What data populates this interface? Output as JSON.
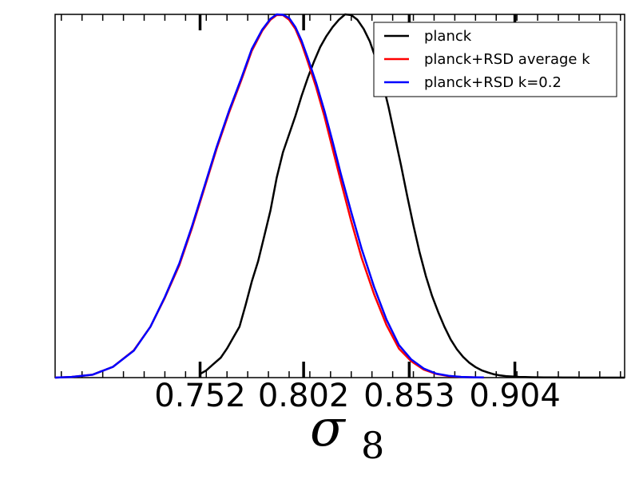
{
  "chart_data": {
    "type": "line",
    "xlabel": "σ",
    "xlabel_subscript": "8",
    "ylabel": "",
    "xlim": [
      0.682,
      0.957
    ],
    "ylim": [
      0,
      1.0
    ],
    "xticks": [
      0.752,
      0.802,
      0.853,
      0.904
    ],
    "xtick_labels": [
      "0.752",
      "0.802",
      "0.853",
      "0.904"
    ],
    "legend_position": "top-right",
    "series": [
      {
        "name": "planck",
        "color": "#000000",
        "x": [
          0.752,
          0.755,
          0.758,
          0.762,
          0.765,
          0.768,
          0.771,
          0.774,
          0.777,
          0.78,
          0.783,
          0.786,
          0.789,
          0.792,
          0.795,
          0.798,
          0.801,
          0.804,
          0.807,
          0.81,
          0.813,
          0.816,
          0.819,
          0.822,
          0.825,
          0.828,
          0.831,
          0.834,
          0.837,
          0.84,
          0.843,
          0.846,
          0.849,
          0.852,
          0.855,
          0.858,
          0.861,
          0.864,
          0.867,
          0.87,
          0.873,
          0.876,
          0.879,
          0.882,
          0.885,
          0.888,
          0.891,
          0.894,
          0.897,
          0.9,
          0.903,
          0.906,
          0.909,
          0.912,
          0.915,
          0.918,
          0.921,
          0.924,
          0.927,
          0.93,
          0.933,
          0.936,
          0.939,
          0.942,
          0.945,
          0.948,
          0.951,
          0.954,
          0.957
        ],
        "y": [
          0.01,
          0.02,
          0.035,
          0.055,
          0.08,
          0.11,
          0.14,
          0.2,
          0.265,
          0.32,
          0.39,
          0.46,
          0.55,
          0.62,
          0.67,
          0.72,
          0.775,
          0.825,
          0.87,
          0.91,
          0.94,
          0.965,
          0.985,
          1.0,
          0.998,
          0.985,
          0.96,
          0.925,
          0.875,
          0.815,
          0.745,
          0.665,
          0.585,
          0.5,
          0.42,
          0.345,
          0.28,
          0.225,
          0.18,
          0.14,
          0.105,
          0.078,
          0.057,
          0.041,
          0.029,
          0.02,
          0.014,
          0.009,
          0.006,
          0.004,
          0.003,
          0.002,
          0.0015,
          0.001,
          0.0008,
          0.0006,
          0.0005,
          0.0004,
          0.0003,
          0.0002,
          0.0002,
          0.0001,
          0.0001,
          0.0001,
          0.0001,
          0.0,
          0.0,
          0.0,
          0.0
        ]
      },
      {
        "name": "planck+RSD average k",
        "color": "#ff0000",
        "x": [
          0.682,
          0.69,
          0.7,
          0.71,
          0.72,
          0.728,
          0.735,
          0.742,
          0.748,
          0.754,
          0.76,
          0.766,
          0.772,
          0.777,
          0.782,
          0.786,
          0.789,
          0.792,
          0.795,
          0.798,
          0.801,
          0.804,
          0.808,
          0.812,
          0.816,
          0.82,
          0.825,
          0.83,
          0.836,
          0.842,
          0.848,
          0.854,
          0.86,
          0.866,
          0.872,
          0.878,
          0.884,
          0.889
        ],
        "y": [
          0.0,
          0.002,
          0.008,
          0.03,
          0.075,
          0.14,
          0.22,
          0.31,
          0.41,
          0.52,
          0.63,
          0.73,
          0.82,
          0.9,
          0.955,
          0.985,
          0.998,
          0.998,
          0.985,
          0.96,
          0.92,
          0.87,
          0.8,
          0.72,
          0.63,
          0.54,
          0.43,
          0.33,
          0.23,
          0.145,
          0.08,
          0.045,
          0.022,
          0.01,
          0.004,
          0.002,
          0.0008,
          0.0003
        ]
      },
      {
        "name": "planck+RSD k=0.2",
        "color": "#0000ff",
        "x": [
          0.682,
          0.69,
          0.7,
          0.71,
          0.72,
          0.728,
          0.735,
          0.742,
          0.748,
          0.754,
          0.76,
          0.766,
          0.772,
          0.777,
          0.782,
          0.786,
          0.789,
          0.792,
          0.795,
          0.798,
          0.801,
          0.804,
          0.808,
          0.812,
          0.816,
          0.82,
          0.825,
          0.83,
          0.836,
          0.842,
          0.848,
          0.854,
          0.86,
          0.866,
          0.872,
          0.878,
          0.884,
          0.889
        ],
        "y": [
          0.0,
          0.002,
          0.008,
          0.03,
          0.074,
          0.14,
          0.222,
          0.315,
          0.415,
          0.525,
          0.635,
          0.735,
          0.825,
          0.905,
          0.958,
          0.988,
          1.0,
          0.999,
          0.99,
          0.965,
          0.928,
          0.88,
          0.812,
          0.735,
          0.65,
          0.56,
          0.455,
          0.355,
          0.25,
          0.16,
          0.09,
          0.05,
          0.025,
          0.011,
          0.005,
          0.002,
          0.0009,
          0.0004
        ]
      }
    ]
  }
}
